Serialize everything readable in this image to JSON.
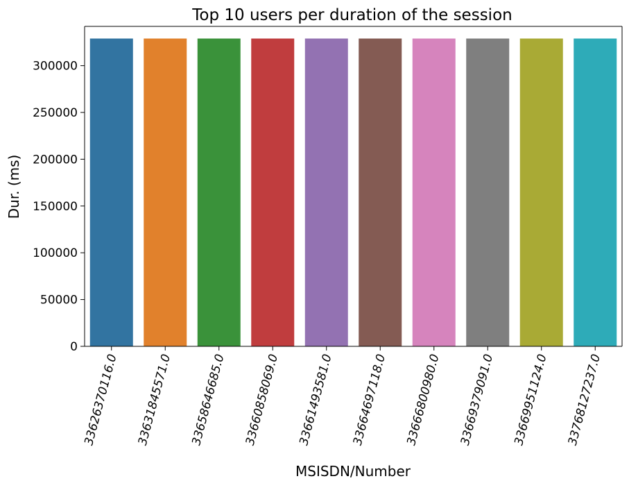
{
  "chart_data": {
    "type": "bar",
    "title": "Top 10 users per duration of the session",
    "xlabel": "MSISDN/Number",
    "ylabel": "Dur. (ms)",
    "categories": [
      "33626370116.0",
      "33631845571.0",
      "33658646685.0",
      "33660858069.0",
      "33661493581.0",
      "33664697118.0",
      "33666800980.0",
      "33669379091.0",
      "33669951124.0",
      "33768127237.0"
    ],
    "values": [
      329000,
      329000,
      329000,
      329000,
      329000,
      329000,
      329000,
      329000,
      329000,
      329000
    ],
    "colors": [
      "#3274a1",
      "#e1812c",
      "#3a923a",
      "#c03d3e",
      "#9372b2",
      "#845b53",
      "#d684bd",
      "#7f7f7f",
      "#a9aa35",
      "#2eabb8"
    ],
    "ylim": [
      0,
      342000
    ],
    "yticks": [
      0,
      50000,
      100000,
      150000,
      200000,
      250000,
      300000
    ],
    "ytick_labels": [
      "0",
      "50000",
      "100000",
      "150000",
      "200000",
      "250000",
      "300000"
    ],
    "grid": false,
    "legend": "none"
  }
}
